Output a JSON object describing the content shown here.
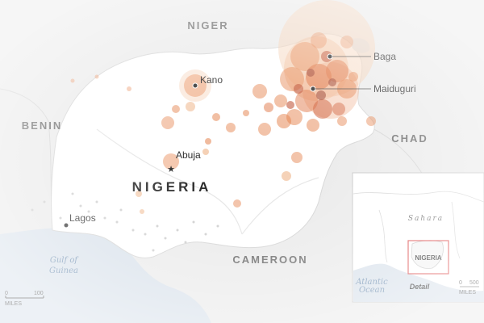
{
  "map": {
    "countries": {
      "niger": "NIGER",
      "benin": "BENIN",
      "chad": "CHAD",
      "cameroon": "CAMEROON",
      "nigeria": "NIGERIA"
    },
    "cities": {
      "kano": "Kano",
      "abuja": "Abuja",
      "lagos": "Lagos",
      "baga": "Baga",
      "maiduguri": "Maiduguri"
    },
    "water": {
      "gulf_line1": "Gulf of",
      "gulf_line2": "Guinea"
    },
    "scale": {
      "zero": "0",
      "hundred": "100",
      "unit": "MILES"
    },
    "inset": {
      "sahara": "Sahara",
      "country": "NIGERIA",
      "ocean_line1": "Atlantic",
      "ocean_line2": "Ocean",
      "detail": "Detail",
      "scale_zero": "0",
      "scale_500": "500",
      "scale_unit": "MILES"
    },
    "colors": {
      "land": "#ffffff",
      "neighbors": "#e7e7e7",
      "water": "#d3dde8",
      "bubble": "#e06a2a",
      "bubble_dark": "#b2300f",
      "inset_box": "#d62b2b"
    }
  }
}
